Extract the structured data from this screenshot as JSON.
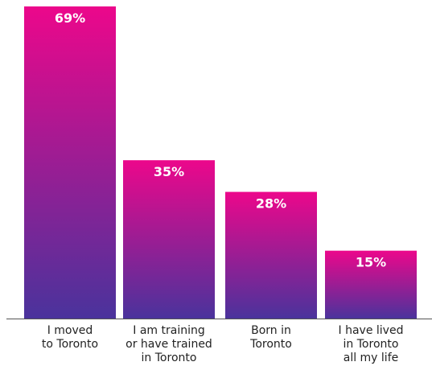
{
  "chart_data": {
    "type": "bar",
    "categories": [
      "I moved\nto Toronto",
      "I am training\nor have trained\nin Toronto",
      "Born in\nToronto",
      "I have lived\nin Toronto\nall my life"
    ],
    "values": [
      69,
      35,
      28,
      15
    ],
    "value_labels": [
      "69%",
      "35%",
      "28%",
      "15%"
    ],
    "colors": [
      "#ec078b",
      "#4a339c"
    ]
  }
}
